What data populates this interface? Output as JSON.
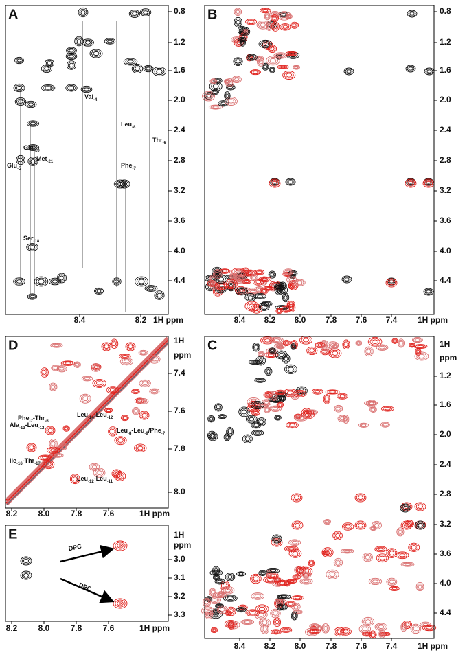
{
  "panels": [
    {
      "letter": "A",
      "yticks": [
        "0.8",
        "1.2",
        "1.6",
        "2.0",
        "2.4",
        "2.8",
        "3.2",
        "3.6",
        "4.0",
        "4.4"
      ],
      "xticks": [
        "8.4",
        "8.2"
      ],
      "x_unit": "1H ppm",
      "labels": [
        [
          "Val",
          "-4"
        ],
        [
          "Leu",
          "-8"
        ],
        [
          "Phe",
          "-7"
        ],
        [
          "Thr",
          "-6"
        ],
        [
          "Glu",
          "-5"
        ],
        [
          "Gln",
          "-10"
        ],
        [
          "Met",
          "-21"
        ],
        [
          "Ser",
          "-18"
        ]
      ]
    },
    {
      "letter": "B",
      "yticks": [
        "0.8",
        "1.2",
        "1.6",
        "2.0",
        "2.4",
        "2.8",
        "3.2",
        "3.6",
        "4.0",
        "4.4"
      ],
      "xticks": [
        "8.4",
        "8.2",
        "8.0",
        "7.8",
        "7.6",
        "7.4"
      ],
      "x_unit": "1H ppm"
    },
    {
      "letter": "D",
      "y_unit": [
        "1H",
        "ppm"
      ],
      "yticks": [
        "7.4",
        "7.6",
        "7.8",
        "8.0"
      ],
      "xticks": [
        "8.2",
        "8.0",
        "7.8",
        "7.6"
      ],
      "x_unit": "1H ppm",
      "labels": [
        [
          "Phe",
          "-7",
          "-Thr",
          "-6"
        ],
        [
          "Leu",
          "-14",
          "-Leu",
          "-12"
        ],
        [
          "Ala",
          "-13",
          "-Leu",
          "-12"
        ],
        [
          "Leu",
          "-8",
          "-Leu",
          "-9",
          "/Phe",
          "-7"
        ],
        [
          "Ile",
          "-16",
          "-Thr",
          "-17"
        ],
        [
          "Leu",
          "-12",
          "-Leu",
          "-11"
        ]
      ]
    },
    {
      "letter": "E",
      "y_unit": [
        "1H",
        "ppm"
      ],
      "yticks": [
        "3.0",
        "3.1",
        "3.2",
        "3.3"
      ],
      "xticks": [
        "8.2",
        "8.0",
        "7.8",
        "7.6"
      ],
      "x_unit": "1H ppm",
      "labels": [
        "DPC",
        "DPC"
      ]
    },
    {
      "letter": "C",
      "y_unit": [
        "1H",
        "ppm"
      ],
      "yticks": [
        "1.2",
        "1.6",
        "2.0",
        "2.4",
        "2.8",
        "3.2",
        "3.6",
        "4.0",
        "4.4"
      ],
      "xticks": [
        "8.4",
        "8.2",
        "8.0",
        "7.8",
        "7.6",
        "7.4"
      ],
      "x_unit": "1H ppm"
    }
  ]
}
